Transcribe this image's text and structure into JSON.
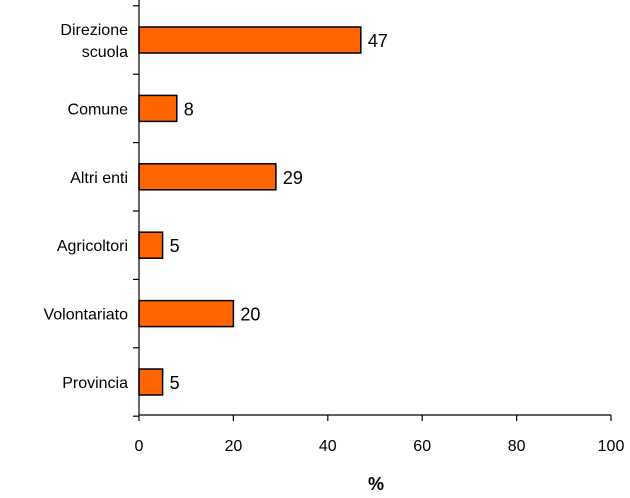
{
  "chart_data": {
    "type": "bar",
    "orientation": "horizontal",
    "categories": [
      "Direzione scuola",
      "Comune",
      "Altri enti",
      "Agricoltori",
      "Volontariato",
      "Provincia"
    ],
    "category_lines": [
      [
        "Direzione",
        "scuola"
      ],
      [
        "Comune"
      ],
      [
        "Altri enti"
      ],
      [
        "Agricoltori"
      ],
      [
        "Volontariato"
      ],
      [
        "Provincia"
      ]
    ],
    "values": [
      47,
      8,
      29,
      5,
      20,
      5
    ],
    "value_labels": [
      "47",
      "8",
      "29",
      "5",
      "20",
      "5"
    ],
    "xlabel": "%",
    "xlim": [
      0,
      100
    ],
    "xticks": [
      0,
      20,
      40,
      60,
      80,
      100
    ],
    "xtick_labels": [
      "0",
      "20",
      "40",
      "60",
      "80",
      "100"
    ],
    "grid": false,
    "legend": "none",
    "colors": {
      "bar_fill": "#FF6600",
      "bar_stroke": "#000000",
      "axis": "#000000"
    }
  }
}
